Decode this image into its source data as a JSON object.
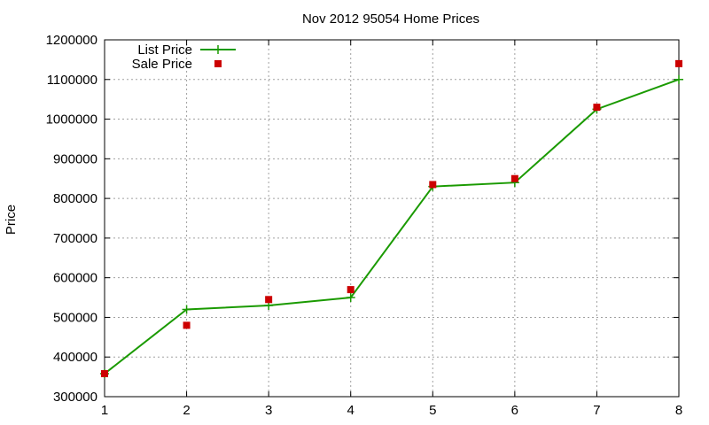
{
  "chart_data": {
    "type": "line",
    "title": "Nov 2012 95054 Home Prices",
    "xlabel": "",
    "ylabel": "Price",
    "x": [
      1,
      2,
      3,
      4,
      5,
      6,
      7,
      8
    ],
    "xlim": [
      1,
      8
    ],
    "ylim": [
      300000,
      1200000
    ],
    "x_ticks": [
      "1",
      "2",
      "3",
      "4",
      "5",
      "6",
      "7",
      "8"
    ],
    "y_ticks": [
      "300000",
      "400000",
      "500000",
      "600000",
      "700000",
      "800000",
      "900000",
      "1000000",
      "1100000",
      "1200000"
    ],
    "grid": true,
    "legend_position": "top-left",
    "series": [
      {
        "name": "List Price",
        "style": "line-with-plus-markers",
        "color": "#1a9a00",
        "values": [
          358000,
          520000,
          530000,
          550000,
          830000,
          840000,
          1025000,
          1100000
        ]
      },
      {
        "name": "Sale Price",
        "style": "square-markers",
        "color": "#cc0000",
        "values": [
          358000,
          480000,
          545000,
          570000,
          835000,
          850000,
          1030000,
          1140000
        ]
      }
    ]
  }
}
